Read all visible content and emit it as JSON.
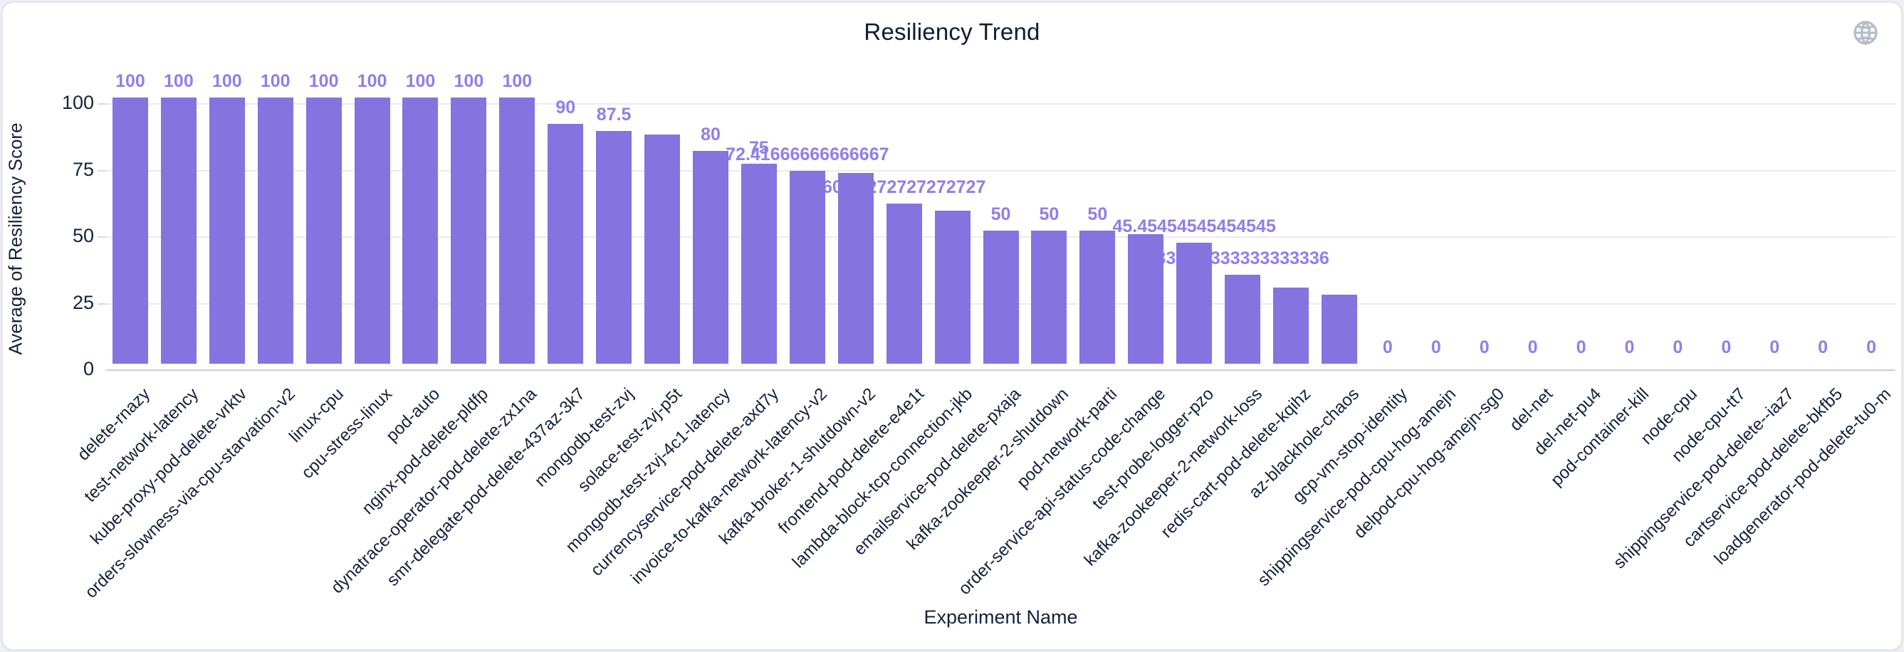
{
  "header": {
    "title": "Resiliency Trend"
  },
  "icons": {
    "top_right": "globe-icon"
  },
  "colors": {
    "bar": "#8573e0",
    "bar_label": "#8f7fe8",
    "axis_text": "#16213c",
    "gridline": "#ececf0",
    "baseline": "#c9cfde",
    "globe_icon": "#b6bcc8"
  },
  "chart_data": {
    "type": "bar",
    "title": "Resiliency Trend",
    "xlabel": "Experiment Name",
    "ylabel": "Average of Resiliency Score",
    "ylim": [
      0,
      100
    ],
    "yticks": [
      0,
      25,
      50,
      75,
      100
    ],
    "grid": true,
    "legend": "none",
    "categories": [
      "delete-rnazy",
      "test-network-latency",
      "kube-proxy-pod-delete-vrktv",
      "orders-slowness-via-cpu-starvation-v2",
      "linux-cpu",
      "cpu-stress-linux",
      "pod-auto",
      "nginx-pod-delete-pldfp",
      "dynatrace-operator-pod-delete-zx1na",
      "smr-delegate-pod-delete-437az-3k7",
      "mongodb-test-zvj",
      "solace-test-zvj-p5t",
      "mongodb-test-zvj-4c1-latency",
      "currencyservice-pod-delete-axd7y",
      "invoice-to-kafka-network-latency-v2",
      "kafka-broker-1-shutdown-v2",
      "frontend-pod-delete-e4e1t",
      "lambda-block-tcp-connection-jkb",
      "emailservice-pod-delete-pxaja",
      "kafka-zookeeper-2-shutdown",
      "pod-network-parti",
      "order-service-api-status-code-change",
      "test-probe-logger-pzo",
      "kafka-zookeeper-2-network-loss",
      "redis-cart-pod-delete-kqihz",
      "az-blackhole-chaos",
      "gcp-vm-stop-identity",
      "shippingservice-pod-cpu-hog-amejn",
      "delpod-cpu-hog-amejn-sg0",
      "del-net",
      "del-net-pu4",
      "pod-container-kill",
      "node-cpu",
      "node-cpu-tt7",
      "shippingservice-pod-delete--iaz7",
      "cartservice-pod-delete-bkfb5",
      "loadgenerator-pod-delete-tu0-m"
    ],
    "values": [
      100,
      100,
      100,
      100,
      100,
      100,
      100,
      100,
      100,
      90,
      87.5,
      86.1,
      80,
      75,
      72.41666666666667,
      71.7,
      60.27272727272727,
      57.6,
      50,
      50,
      50,
      48.7,
      45.45454545454545,
      33.333333333333336,
      28.6,
      25.9,
      0,
      0,
      0,
      0,
      0,
      0,
      0,
      0,
      0,
      0,
      0
    ],
    "bar_labels": [
      "100",
      "100",
      "100",
      "100",
      "100",
      "100",
      "100",
      "100",
      "100",
      "90",
      "87.5",
      "",
      "80",
      "75",
      "72.41666666666667",
      "",
      "60.27272727272727",
      "",
      "50",
      "50",
      "50",
      "",
      "45.45454545454545",
      "33.333333333333336",
      "",
      "",
      "0",
      "0",
      "0",
      "0",
      "0",
      "0",
      "0",
      "0",
      "0",
      "0",
      "0"
    ]
  }
}
